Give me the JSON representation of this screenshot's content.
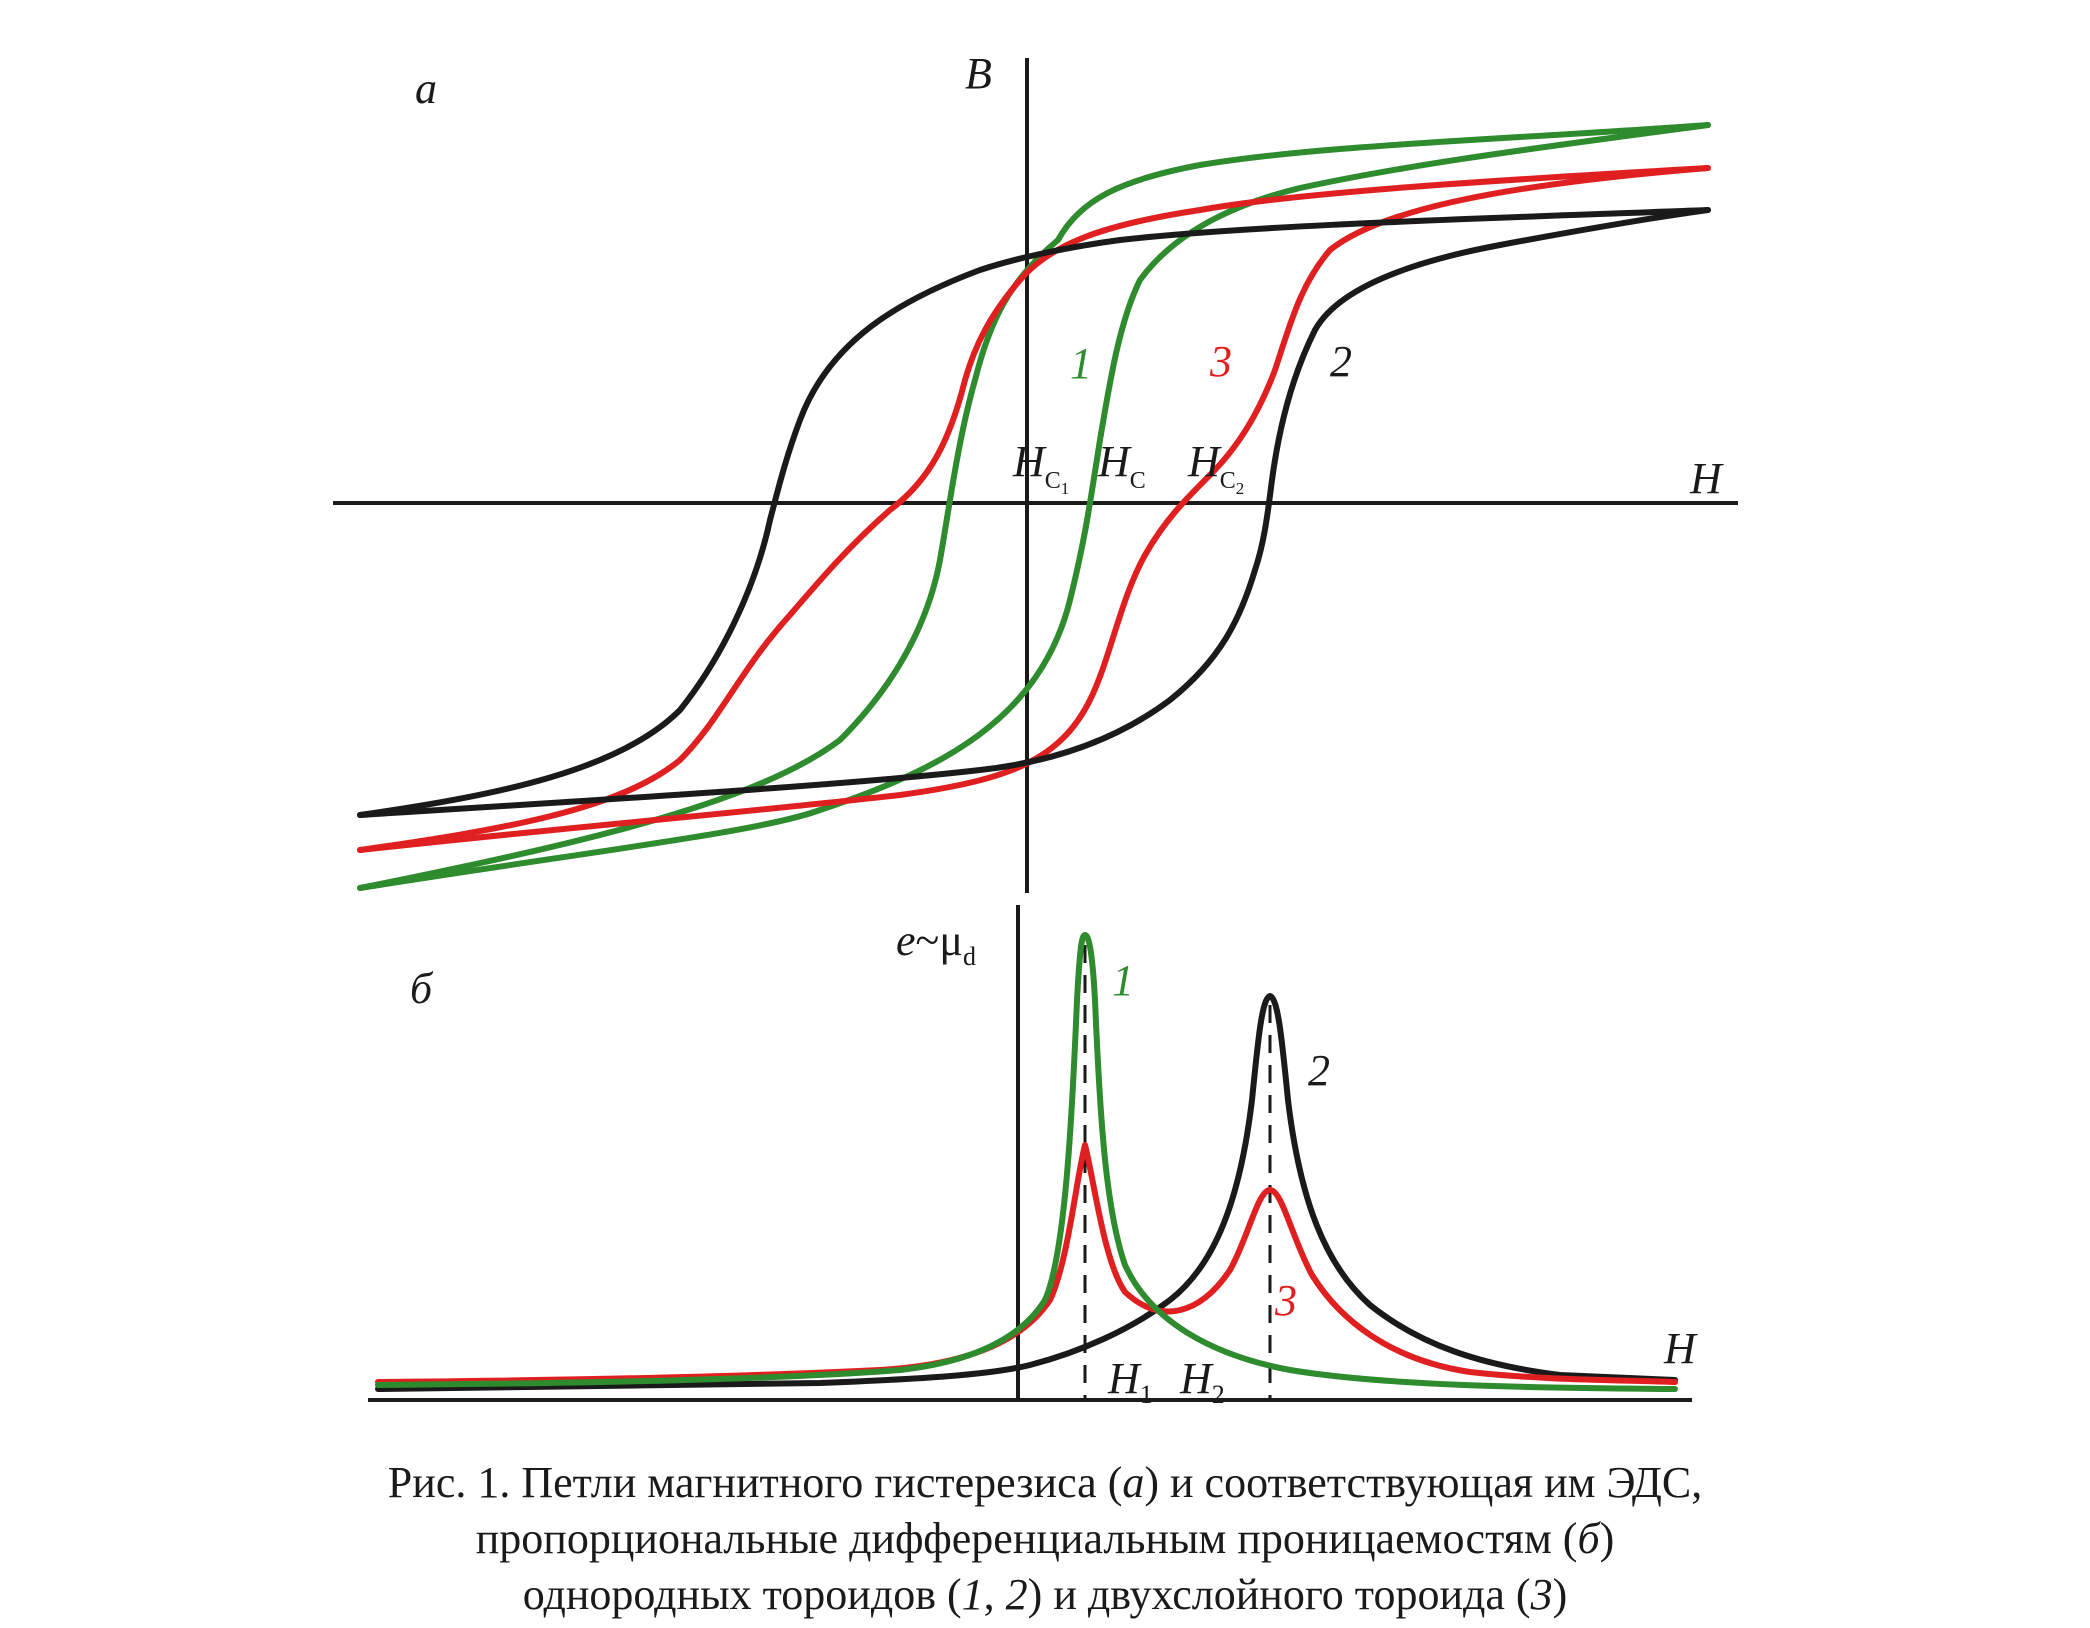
{
  "panel_a": {
    "label": "а",
    "y_axis": "B",
    "x_axis": "H",
    "hc1": "H",
    "hc1_sub": "C",
    "hc1_sub2": "1",
    "hc": "H",
    "hc_sub": "C",
    "hc2": "H",
    "hc2_sub": "C",
    "hc2_sub2": "2",
    "curve_labels": {
      "c1": "1",
      "c2": "2",
      "c3": "3"
    }
  },
  "panel_b": {
    "label": "б",
    "y_axis_e": "e",
    "y_axis_tilde": "~μ",
    "y_axis_sub": "d",
    "x_axis": "H",
    "h1": "H",
    "h1_sub": "1",
    "h2": "H",
    "h2_sub": "2",
    "curve_labels": {
      "c1": "1",
      "c2": "2",
      "c3": "3"
    }
  },
  "colors": {
    "curve1": "#2e8b2e",
    "curve2": "#1a1a1a",
    "curve3": "#e02020"
  },
  "caption": {
    "l1_a": "Рис. 1. Петли магнитного гистерезиса (",
    "l1_b": "а",
    "l1_c": ") и соответствующая им ЭДС,",
    "l2_a": "пропорциональные дифференциальным проницаемостям (",
    "l2_b": "б",
    "l2_c": ")",
    "l3_a": "однородных тороидов (",
    "l3_b": "1",
    "l3_c": ", ",
    "l3_d": "2",
    "l3_e": ") и двухслойного тороида (",
    "l3_f": "3",
    "l3_g": ")"
  }
}
